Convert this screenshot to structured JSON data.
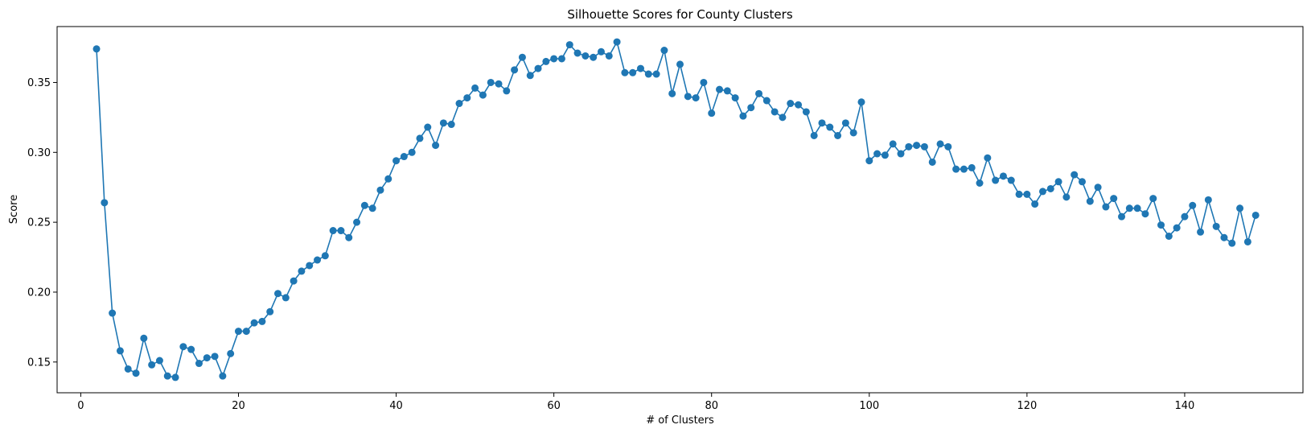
{
  "chart_data": {
    "type": "line",
    "title": "Silhouette Scores for County Clusters",
    "xlabel": "# of Clusters",
    "ylabel": "Score",
    "xlim": [
      -3,
      155
    ],
    "ylim": [
      0.128,
      0.39
    ],
    "xticks": [
      0,
      20,
      40,
      60,
      80,
      100,
      120,
      140
    ],
    "yticks": [
      0.15,
      0.2,
      0.25,
      0.3,
      0.35
    ],
    "grid": false,
    "color": "#1f77b4",
    "markers": true,
    "series": [
      {
        "x": [
          2,
          3,
          4,
          5,
          6,
          7,
          8,
          9,
          10,
          11,
          12,
          13,
          14,
          15,
          16,
          17,
          18,
          19,
          20,
          21,
          22,
          23,
          24,
          25,
          26,
          27,
          28,
          29,
          30,
          31,
          32,
          33,
          34,
          35,
          36,
          37,
          38,
          39,
          40,
          41,
          42,
          43,
          44,
          45,
          46,
          47,
          48,
          49,
          50,
          51,
          52,
          53,
          54,
          55,
          56,
          57,
          58,
          59,
          60,
          61,
          62,
          63,
          64,
          65,
          66,
          67,
          68,
          69,
          70,
          71,
          72,
          73,
          74,
          75,
          76,
          77,
          78,
          79,
          80,
          81,
          82,
          83,
          84,
          85,
          86,
          87,
          88,
          89,
          90,
          91,
          92,
          93,
          94,
          95,
          96,
          97,
          98,
          99,
          100,
          101,
          102,
          103,
          104,
          105,
          106,
          107,
          108,
          109,
          110,
          111,
          112,
          113,
          114,
          115,
          116,
          117,
          118,
          119,
          120,
          121,
          122,
          123,
          124,
          125,
          126,
          127,
          128,
          129,
          130,
          131,
          132,
          133,
          134,
          135,
          136,
          137,
          138,
          139,
          140,
          141,
          142,
          143,
          144,
          145,
          146,
          147,
          148,
          149
        ],
        "values": [
          0.374,
          0.264,
          0.185,
          0.158,
          0.145,
          0.142,
          0.167,
          0.148,
          0.151,
          0.14,
          0.139,
          0.161,
          0.159,
          0.149,
          0.153,
          0.154,
          0.14,
          0.156,
          0.172,
          0.172,
          0.178,
          0.179,
          0.186,
          0.199,
          0.196,
          0.208,
          0.215,
          0.219,
          0.223,
          0.226,
          0.244,
          0.244,
          0.239,
          0.25,
          0.262,
          0.26,
          0.273,
          0.281,
          0.294,
          0.297,
          0.3,
          0.31,
          0.318,
          0.305,
          0.321,
          0.32,
          0.335,
          0.339,
          0.346,
          0.341,
          0.35,
          0.349,
          0.344,
          0.359,
          0.368,
          0.355,
          0.36,
          0.365,
          0.367,
          0.367,
          0.377,
          0.371,
          0.369,
          0.368,
          0.372,
          0.369,
          0.379,
          0.357,
          0.357,
          0.36,
          0.356,
          0.356,
          0.373,
          0.342,
          0.363,
          0.34,
          0.339,
          0.35,
          0.328,
          0.345,
          0.344,
          0.339,
          0.326,
          0.332,
          0.342,
          0.337,
          0.329,
          0.325,
          0.335,
          0.334,
          0.329,
          0.312,
          0.321,
          0.318,
          0.312,
          0.321,
          0.314,
          0.336,
          0.294,
          0.299,
          0.298,
          0.306,
          0.299,
          0.304,
          0.305,
          0.304,
          0.293,
          0.306,
          0.304,
          0.288,
          0.288,
          0.289,
          0.278,
          0.296,
          0.28,
          0.283,
          0.28,
          0.27,
          0.27,
          0.263,
          0.272,
          0.274,
          0.279,
          0.268,
          0.284,
          0.279,
          0.265,
          0.275,
          0.261,
          0.267,
          0.254,
          0.26,
          0.26,
          0.256,
          0.267,
          0.248,
          0.24,
          0.246,
          0.254,
          0.262,
          0.243,
          0.266,
          0.247,
          0.239,
          0.235,
          0.26,
          0.236,
          0.255
        ]
      }
    ]
  }
}
